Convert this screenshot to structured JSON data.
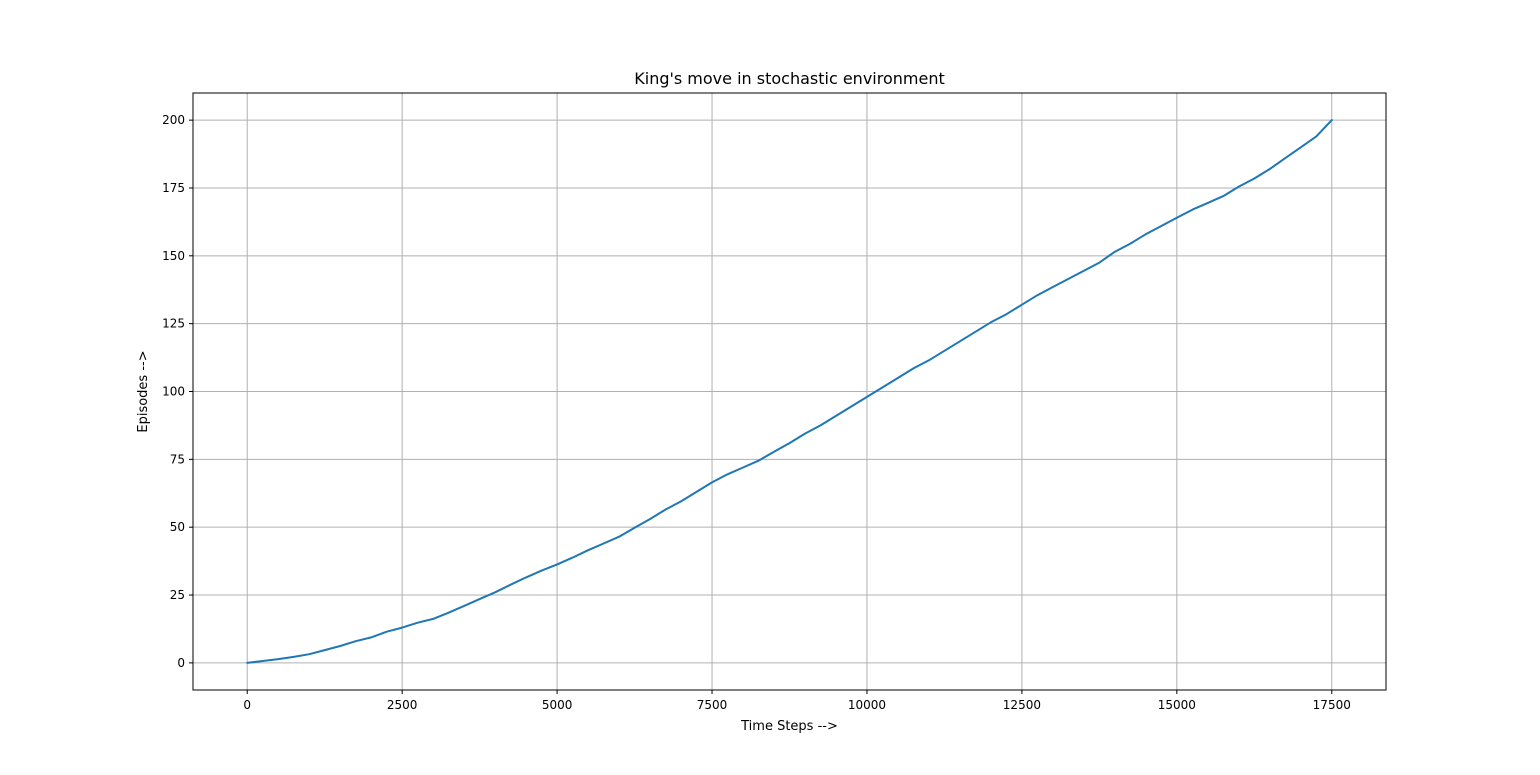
{
  "chart_data": {
    "type": "line",
    "title": "King's move in stochastic environment",
    "xlabel": "Time Steps -->",
    "ylabel": "Episodes -->",
    "xlim": [
      -875,
      18375
    ],
    "ylim": [
      -10,
      210
    ],
    "xticks": [
      0,
      2500,
      5000,
      7500,
      10000,
      12500,
      15000,
      17500
    ],
    "yticks": [
      0,
      25,
      50,
      75,
      100,
      125,
      150,
      175,
      200
    ],
    "grid": true,
    "colors": {
      "line": "#1f77b4"
    },
    "series": [
      {
        "x": [
          0,
          250,
          500,
          750,
          1000,
          1250,
          1500,
          1750,
          2000,
          2250,
          2500,
          2750,
          3000,
          3250,
          3500,
          3750,
          4000,
          4250,
          4500,
          4750,
          5000,
          5250,
          5500,
          5750,
          6000,
          6250,
          6500,
          6750,
          7000,
          7250,
          7500,
          7750,
          8000,
          8250,
          8500,
          8750,
          9000,
          9250,
          9500,
          9750,
          10000,
          10250,
          10500,
          10750,
          11000,
          11250,
          11500,
          11750,
          12000,
          12250,
          12500,
          12750,
          13000,
          13250,
          13500,
          13750,
          14000,
          14250,
          14500,
          14750,
          15000,
          15250,
          15500,
          15750,
          16000,
          16250,
          16500,
          16750,
          17000,
          17250,
          17500
        ],
        "y": [
          0,
          0.7,
          1.4,
          2.2,
          3.2,
          4.7,
          6.2,
          8.0,
          9.4,
          11.5,
          13.0,
          14.8,
          16.2,
          18.5,
          21.0,
          23.5,
          26.0,
          28.8,
          31.5,
          34.0,
          36.3,
          38.8,
          41.5,
          44.0,
          46.5,
          49.8,
          53.0,
          56.5,
          59.5,
          63.0,
          66.5,
          69.5,
          72.0,
          74.5,
          77.8,
          81.0,
          84.5,
          87.5,
          91.0,
          94.5,
          98.0,
          101.5,
          105.0,
          108.5,
          111.5,
          115.0,
          118.5,
          122.0,
          125.5,
          128.5,
          132.0,
          135.5,
          138.5,
          141.5,
          144.5,
          147.5,
          151.5,
          154.5,
          158.0,
          161.0,
          164.0,
          167.0,
          169.5,
          172.0,
          175.5,
          178.5,
          182.0,
          186.0,
          190.0,
          194.0,
          200.0
        ]
      }
    ]
  }
}
